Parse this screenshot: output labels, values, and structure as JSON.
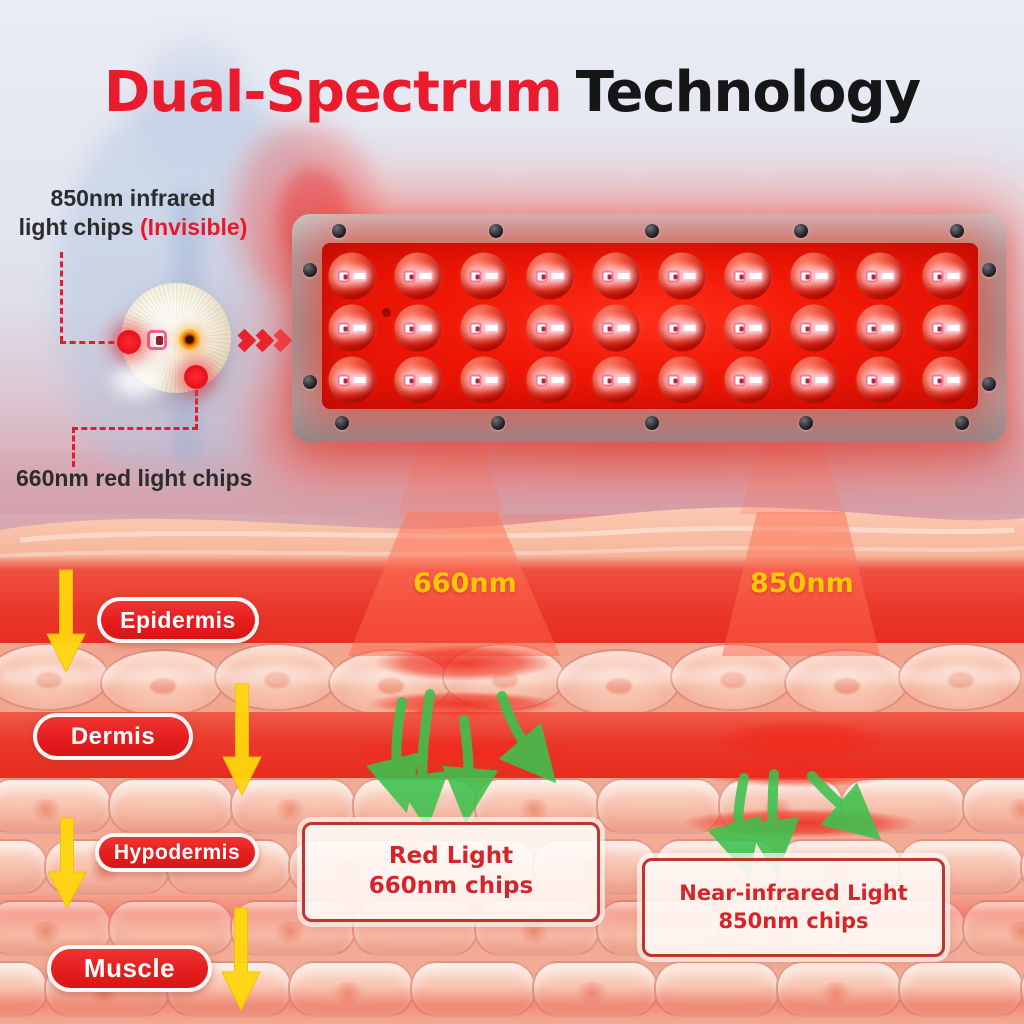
{
  "title": {
    "highlight": "Dual-Spectrum",
    "rest": "Technology"
  },
  "callouts": {
    "infrared_line1": "850nm infrared",
    "infrared_line2": "light chips",
    "infrared_line2_highlight": "(Invisible)",
    "red_chips": "660nm red light chips"
  },
  "panel": {
    "led_rows": 3,
    "led_columns": 10,
    "led_total": 30
  },
  "beams": {
    "red_label": "660nm",
    "nir_label": "850nm"
  },
  "skin_layers": [
    {
      "label": "Epidermis"
    },
    {
      "label": "Dermis"
    },
    {
      "label": "Hypodermis"
    },
    {
      "label": "Muscle"
    }
  ],
  "info_boxes": {
    "red": {
      "line1": "Red Light",
      "line2": "660nm chips"
    },
    "nir": {
      "line1": "Near-infrared Light",
      "line2": "850nm chips"
    }
  },
  "colors": {
    "accent_red": "#e8192c",
    "panel_board_red": "#ee1302",
    "wavelength_yellow": "#ffc60a",
    "arrow_yellow": "#ffd60f",
    "arrow_green": "#3cc24d",
    "pill_red": "#e51d1d",
    "title_black": "#161616"
  }
}
